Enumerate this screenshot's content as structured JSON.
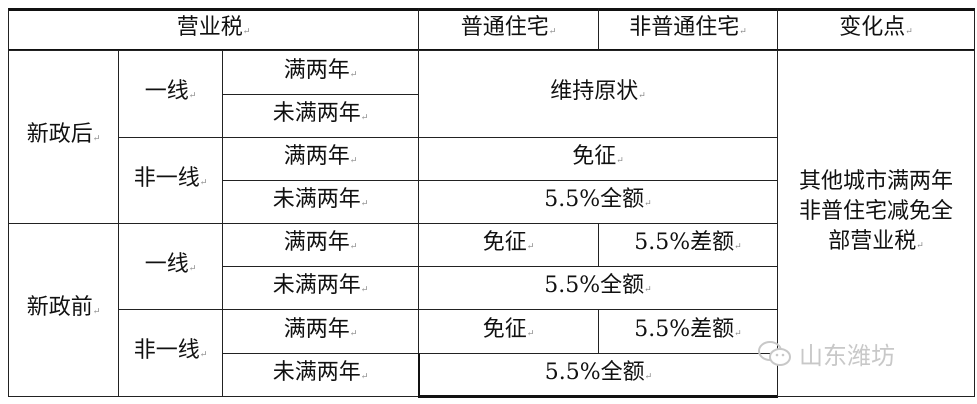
{
  "header": {
    "tax": "营业税",
    "ordinary": "普通住宅",
    "non_ordinary": "非普通住宅",
    "change": "变化点"
  },
  "after": {
    "label": "新政后",
    "tier1": {
      "label": "一线",
      "full2": "满两年",
      "under2": "未满两年",
      "merged": "维持原状"
    },
    "other": {
      "label": "非一线",
      "full2": "满两年",
      "full2_value": "免征",
      "under2": "未满两年",
      "under2_value": "5.5%全额"
    }
  },
  "before": {
    "label": "新政前",
    "tier1": {
      "label": "一线",
      "full2": "满两年",
      "full2_ordinary": "免征",
      "full2_non": "5.5%差额",
      "under2": "未满两年",
      "under2_value": "5.5%全额"
    },
    "other": {
      "label": "非一线",
      "full2": "满两年",
      "full2_ordinary": "免征",
      "full2_non": "5.5%差额",
      "under2": "未满两年",
      "under2_value": "5.5%全额"
    }
  },
  "change_note": "其他城市满两年非普住宅减免全部营业税",
  "watermark": "山东潍坊"
}
